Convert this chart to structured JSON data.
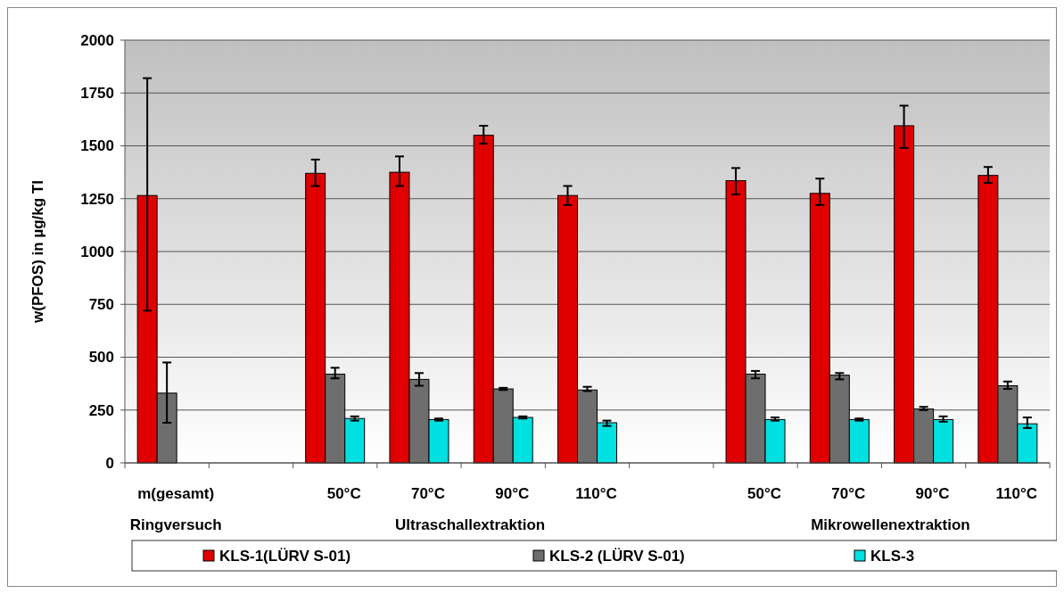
{
  "chart_data": {
    "type": "bar",
    "ylabel": "w(PFOS) in µg/kg TI",
    "categories": [
      "m(gesamt)",
      null,
      "50°C",
      "70°C",
      "90°C",
      "110°C",
      null,
      "50°C",
      "70°C",
      "90°C",
      "110°C"
    ],
    "annotations": [
      "Ringversuch",
      "Ultraschallextraktion",
      "Mikrowellenextraktion"
    ],
    "series": [
      {
        "name": "KLS-1(LÜRV S-01)",
        "color": "#e00000",
        "values": [
          1265,
          null,
          1370,
          1375,
          1550,
          1265,
          null,
          1335,
          1275,
          1595,
          1360
        ],
        "errors": [
          [
            720,
            1820
          ],
          null,
          [
            1310,
            1435
          ],
          [
            1310,
            1450
          ],
          [
            1510,
            1595
          ],
          [
            1220,
            1310
          ],
          null,
          [
            1270,
            1395
          ],
          [
            1220,
            1345
          ],
          [
            1490,
            1690
          ],
          [
            1325,
            1400
          ]
        ]
      },
      {
        "name": "KLS-2 (LÜRV S-01)",
        "color": "#6e6e6e",
        "values": [
          330,
          null,
          420,
          395,
          350,
          345,
          null,
          420,
          415,
          255,
          365
        ],
        "errors": [
          [
            190,
            475
          ],
          null,
          [
            400,
            450
          ],
          [
            365,
            425
          ],
          [
            345,
            355
          ],
          [
            340,
            360
          ],
          null,
          [
            400,
            435
          ],
          [
            395,
            425
          ],
          [
            250,
            265
          ],
          [
            350,
            385
          ]
        ]
      },
      {
        "name": "KLS-3",
        "color": "#00e0e0",
        "values": [
          null,
          null,
          210,
          205,
          215,
          190,
          null,
          205,
          205,
          205,
          185
        ],
        "errors": [
          null,
          null,
          [
            200,
            220
          ],
          [
            200,
            210
          ],
          [
            210,
            220
          ],
          [
            175,
            200
          ],
          null,
          [
            200,
            215
          ],
          [
            200,
            210
          ],
          [
            195,
            220
          ],
          [
            165,
            215
          ]
        ]
      }
    ],
    "ylim": [
      0,
      2000
    ],
    "yticks": [
      0,
      250,
      500,
      750,
      1000,
      1250,
      1500,
      1750,
      2000
    ],
    "grid": "y",
    "legend": "bottom"
  }
}
